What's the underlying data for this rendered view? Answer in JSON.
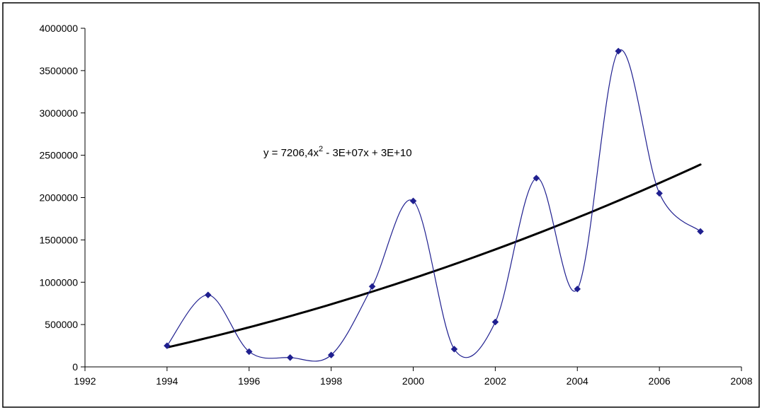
{
  "chart_data": {
    "type": "scatter",
    "title": "",
    "xlabel": "",
    "ylabel": "",
    "xlim": [
      1992,
      2008
    ],
    "ylim": [
      0,
      4000000
    ],
    "x_ticks": [
      1992,
      1994,
      1996,
      1998,
      2000,
      2002,
      2004,
      2006,
      2008
    ],
    "y_ticks": [
      0,
      500000,
      1000000,
      1500000,
      2000000,
      2500000,
      3000000,
      3500000,
      4000000
    ],
    "x_tick_labels": [
      "1992",
      "1994",
      "1996",
      "1998",
      "2000",
      "2002",
      "2004",
      "2006",
      "2008"
    ],
    "y_tick_labels": [
      "0",
      "500000",
      "1000000",
      "1500000",
      "2000000",
      "2500000",
      "3000000",
      "3500000",
      "4000000"
    ],
    "grid": false,
    "legend": false,
    "series": [
      {
        "x": [
          1994,
          1995,
          1996,
          1997,
          1998,
          1999,
          2000,
          2001,
          2002,
          2003,
          2004,
          2005,
          2006,
          2007
        ],
        "y": [
          250000,
          850000,
          180000,
          110000,
          140000,
          950000,
          1960000,
          210000,
          530000,
          2230000,
          920000,
          3730000,
          2050000,
          1600000
        ],
        "line": "smoothed",
        "color": "#1f1f8f",
        "marker": "diamond"
      }
    ],
    "trendline": {
      "type": "polynomial",
      "order": 2,
      "x_range": [
        1994,
        2007
      ],
      "y_start": 230000,
      "y_end": 2390000,
      "equation": {
        "prefix": "y = 7206,4x",
        "exponent": "2",
        "suffix": " - 3E+07x + 3E+10"
      },
      "color": "#000000"
    }
  }
}
